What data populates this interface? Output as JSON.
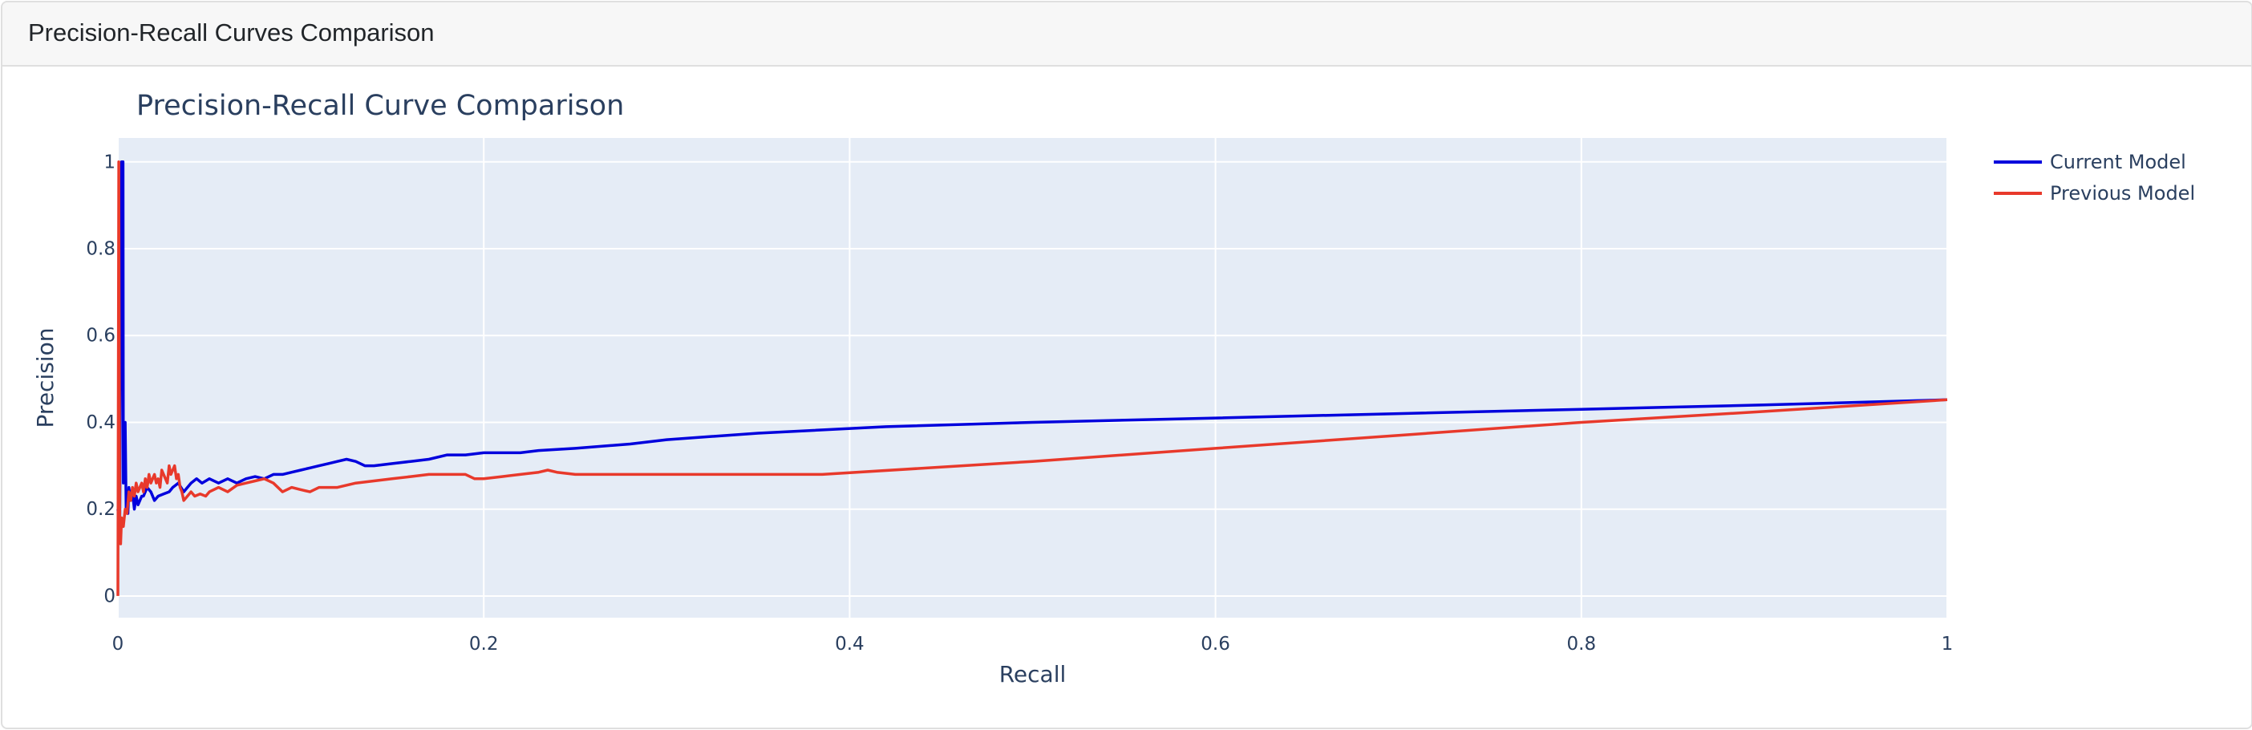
{
  "card": {
    "title": "Precision-Recall Curves Comparison"
  },
  "colors": {
    "plot_background": "#e5ecf6",
    "grid": "#ffffff",
    "text": "#2a3f5f",
    "header_background": "#f7f7f7",
    "border": "#dfdfdf"
  },
  "chart_data": {
    "type": "line",
    "title": "Precision-Recall Curve Comparison",
    "xlabel": "Recall",
    "ylabel": "Precision",
    "xlim": [
      0,
      1
    ],
    "ylim": [
      -0.05,
      1.055
    ],
    "x_ticks": [
      0,
      0.2,
      0.4,
      0.6,
      0.8,
      1
    ],
    "x_tick_labels": [
      "0",
      "0.2",
      "0.4",
      "0.6",
      "0.8",
      "1"
    ],
    "y_ticks": [
      0,
      0.2,
      0.4,
      0.6,
      0.8,
      1
    ],
    "y_tick_labels": [
      "0",
      "0.2",
      "0.4",
      "0.6",
      "0.8",
      "1"
    ],
    "grid": true,
    "legend_position": "top-right",
    "series": [
      {
        "name": "Current Model",
        "color": "#0000dd",
        "x": [
          0,
          0.001,
          0.002,
          0.0022,
          0.0025,
          0.0028,
          0.003,
          0.0035,
          0.004,
          0.0045,
          0.005,
          0.0055,
          0.006,
          0.007,
          0.008,
          0.009,
          0.01,
          0.011,
          0.012,
          0.013,
          0.014,
          0.016,
          0.018,
          0.02,
          0.022,
          0.025,
          0.028,
          0.03,
          0.033,
          0.036,
          0.04,
          0.043,
          0.046,
          0.05,
          0.055,
          0.06,
          0.065,
          0.07,
          0.075,
          0.08,
          0.085,
          0.09,
          0.095,
          0.1,
          0.105,
          0.11,
          0.115,
          0.12,
          0.125,
          0.13,
          0.135,
          0.14,
          0.15,
          0.16,
          0.17,
          0.18,
          0.19,
          0.2,
          0.21,
          0.22,
          0.23,
          0.25,
          0.28,
          0.3,
          0.35,
          0.42,
          0.5,
          0.6,
          0.7,
          0.8,
          0.9,
          1.0
        ],
        "y": [
          0.2,
          0.15,
          1.0,
          1.0,
          1.0,
          1.0,
          0.26,
          0.3,
          0.4,
          0.2,
          0.22,
          0.19,
          0.25,
          0.22,
          0.24,
          0.2,
          0.23,
          0.21,
          0.22,
          0.23,
          0.23,
          0.25,
          0.24,
          0.22,
          0.23,
          0.235,
          0.24,
          0.25,
          0.26,
          0.24,
          0.26,
          0.27,
          0.26,
          0.27,
          0.26,
          0.27,
          0.26,
          0.27,
          0.275,
          0.27,
          0.28,
          0.28,
          0.285,
          0.29,
          0.295,
          0.3,
          0.305,
          0.31,
          0.315,
          0.31,
          0.3,
          0.3,
          0.305,
          0.31,
          0.315,
          0.325,
          0.325,
          0.33,
          0.33,
          0.33,
          0.335,
          0.34,
          0.35,
          0.36,
          0.375,
          0.39,
          0.4,
          0.41,
          0.42,
          0.43,
          0.44,
          0.452
        ]
      },
      {
        "name": "Previous Model",
        "color": "#e8392b",
        "x": [
          0,
          0.0005,
          0.001,
          0.0015,
          0.002,
          0.003,
          0.004,
          0.005,
          0.006,
          0.007,
          0.008,
          0.009,
          0.01,
          0.011,
          0.012,
          0.013,
          0.014,
          0.015,
          0.016,
          0.017,
          0.018,
          0.019,
          0.02,
          0.021,
          0.022,
          0.023,
          0.024,
          0.025,
          0.026,
          0.027,
          0.028,
          0.029,
          0.03,
          0.031,
          0.032,
          0.033,
          0.034,
          0.035,
          0.036,
          0.038,
          0.04,
          0.042,
          0.045,
          0.048,
          0.05,
          0.055,
          0.06,
          0.065,
          0.07,
          0.075,
          0.08,
          0.085,
          0.09,
          0.095,
          0.1,
          0.105,
          0.11,
          0.12,
          0.13,
          0.14,
          0.15,
          0.16,
          0.17,
          0.18,
          0.19,
          0.195,
          0.2,
          0.21,
          0.22,
          0.23,
          0.235,
          0.24,
          0.25,
          0.27,
          0.28,
          0.3,
          0.35,
          0.385,
          0.5,
          0.6,
          0.7,
          0.8,
          0.9,
          1.0
        ],
        "y": [
          0.0,
          1.0,
          0.16,
          0.12,
          0.18,
          0.16,
          0.2,
          0.19,
          0.24,
          0.22,
          0.25,
          0.23,
          0.26,
          0.24,
          0.25,
          0.26,
          0.24,
          0.27,
          0.25,
          0.28,
          0.26,
          0.27,
          0.28,
          0.26,
          0.27,
          0.25,
          0.29,
          0.28,
          0.27,
          0.26,
          0.3,
          0.28,
          0.29,
          0.3,
          0.27,
          0.28,
          0.25,
          0.24,
          0.22,
          0.23,
          0.24,
          0.23,
          0.235,
          0.23,
          0.24,
          0.25,
          0.24,
          0.255,
          0.26,
          0.265,
          0.27,
          0.26,
          0.24,
          0.25,
          0.245,
          0.24,
          0.25,
          0.25,
          0.26,
          0.265,
          0.27,
          0.275,
          0.28,
          0.28,
          0.28,
          0.27,
          0.27,
          0.275,
          0.28,
          0.285,
          0.29,
          0.285,
          0.28,
          0.28,
          0.28,
          0.28,
          0.28,
          0.28,
          0.31,
          0.34,
          0.37,
          0.4,
          0.425,
          0.452
        ]
      }
    ]
  }
}
